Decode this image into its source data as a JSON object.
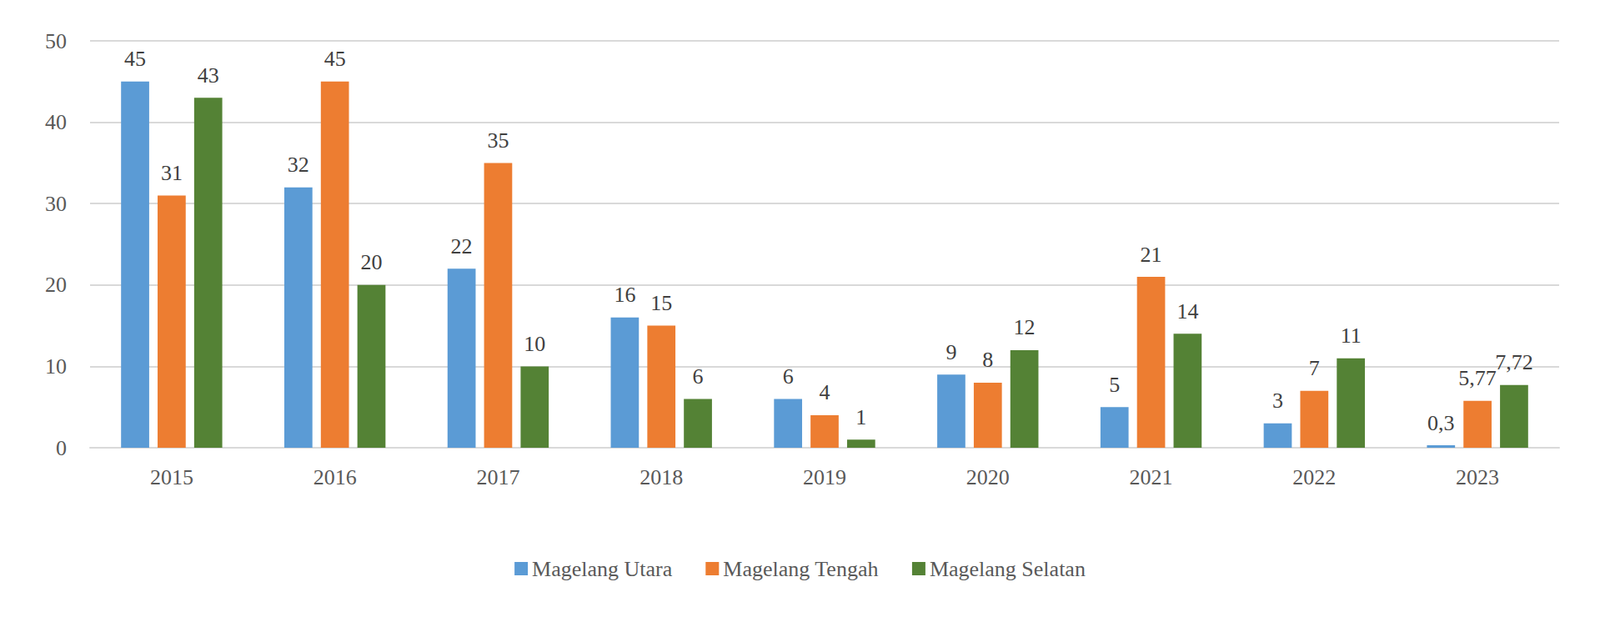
{
  "chart_data": {
    "type": "bar",
    "categories": [
      "2015",
      "2016",
      "2017",
      "2018",
      "2019",
      "2020",
      "2021",
      "2022",
      "2023"
    ],
    "series": [
      {
        "name": "Magelang Utara",
        "color": "#5b9bd5",
        "values": [
          45,
          32,
          22,
          16,
          6,
          9,
          5,
          3,
          0.3
        ],
        "value_labels": [
          "45",
          "32",
          "22",
          "16",
          "6",
          "9",
          "5",
          "3",
          "0,3"
        ]
      },
      {
        "name": "Magelang Tengah",
        "color": "#ed7d31",
        "values": [
          31,
          45,
          35,
          15,
          4,
          8,
          21,
          7,
          5.77
        ],
        "value_labels": [
          "31",
          "45",
          "35",
          "15",
          "4",
          "8",
          "21",
          "7",
          "5,77"
        ]
      },
      {
        "name": "Magelang Selatan",
        "color": "#548235",
        "values": [
          43,
          20,
          10,
          6,
          1,
          12,
          14,
          11,
          7.72
        ],
        "value_labels": [
          "43",
          "20",
          "10",
          "6",
          "1",
          "12",
          "14",
          "11",
          "7,72"
        ]
      }
    ],
    "ylim": [
      0,
      50
    ],
    "yticks": [
      0,
      10,
      20,
      30,
      40,
      50
    ],
    "grid": true,
    "legend": "bottom",
    "data_labels": true
  }
}
